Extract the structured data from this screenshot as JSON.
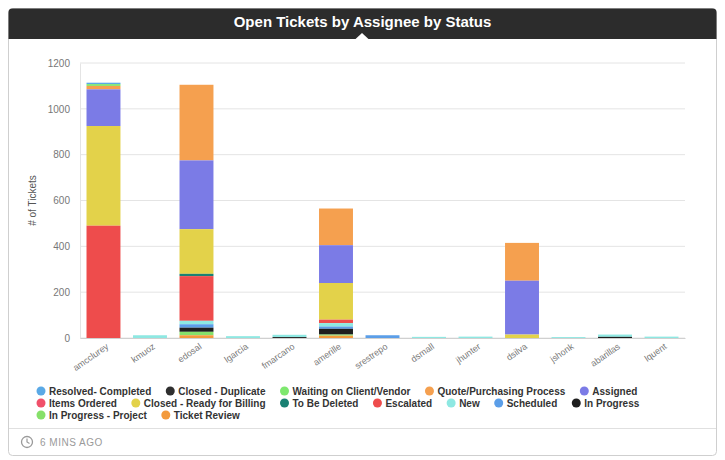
{
  "chart_data": {
    "type": "bar",
    "title": "Open Tickets by Assignee by Status",
    "y_label": "# of Tickets",
    "footer": "6 MINS AGO",
    "stacked": true,
    "grid": true,
    "legend": "bottom",
    "categories": [
      "amcclurey",
      "kmuoz",
      "edosal",
      "lgarcia",
      "fmarcano",
      "amerille",
      "srestrepo",
      "dsmall",
      "jhunter",
      "dsilva",
      "jshonk",
      "abarillas",
      "lquent"
    ],
    "ylim": [
      0,
      1200
    ],
    "yticks": [
      0,
      200,
      400,
      600,
      800,
      1000,
      1200
    ],
    "series": [
      {
        "name": "Resolved- Completed",
        "color": "#5aa9e6",
        "values": [
          6,
          0,
          0,
          0,
          0,
          0,
          0,
          0,
          0,
          0,
          0,
          0,
          0
        ]
      },
      {
        "name": "Closed - Duplicate",
        "color": "#2f2f2f",
        "values": [
          0,
          0,
          0,
          0,
          0,
          0,
          0,
          0,
          0,
          0,
          0,
          0,
          0
        ]
      },
      {
        "name": "Waiting on Client/Vendor",
        "color": "#7ee86f",
        "values": [
          8,
          0,
          0,
          0,
          0,
          0,
          0,
          0,
          0,
          0,
          0,
          0,
          0
        ]
      },
      {
        "name": "Quote/Purchasing Process",
        "color": "#f5a04f",
        "values": [
          15,
          0,
          330,
          0,
          0,
          160,
          0,
          0,
          0,
          165,
          0,
          0,
          0
        ]
      },
      {
        "name": "Assigned",
        "color": "#7b7be6",
        "values": [
          160,
          0,
          300,
          0,
          0,
          165,
          0,
          0,
          0,
          235,
          0,
          0,
          0
        ]
      },
      {
        "name": "Items Ordered",
        "color": "#f0506a",
        "values": [
          0,
          0,
          0,
          0,
          0,
          0,
          0,
          0,
          0,
          0,
          0,
          0,
          0
        ]
      },
      {
        "name": "Closed - Ready for Billing",
        "color": "#e3d24a",
        "values": [
          435,
          0,
          195,
          0,
          0,
          160,
          0,
          0,
          0,
          15,
          0,
          0,
          0
        ]
      },
      {
        "name": "To Be Deleted",
        "color": "#1a8173",
        "values": [
          0,
          0,
          10,
          0,
          0,
          0,
          0,
          0,
          0,
          0,
          0,
          0,
          0
        ]
      },
      {
        "name": "Escalated",
        "color": "#ee4c4c",
        "values": [
          490,
          0,
          195,
          0,
          0,
          15,
          0,
          0,
          0,
          0,
          0,
          0,
          0
        ]
      },
      {
        "name": "New",
        "color": "#8ee8e2",
        "values": [
          0,
          12,
          15,
          8,
          10,
          15,
          0,
          5,
          6,
          0,
          4,
          10,
          6
        ]
      },
      {
        "name": "Scheduled",
        "color": "#5b9ee8",
        "values": [
          0,
          0,
          15,
          0,
          0,
          10,
          12,
          0,
          0,
          0,
          0,
          0,
          0
        ]
      },
      {
        "name": "In Progress",
        "color": "#1e1e1e",
        "values": [
          0,
          0,
          18,
          0,
          4,
          25,
          0,
          0,
          0,
          0,
          0,
          5,
          0
        ]
      },
      {
        "name": "In Progress - Project",
        "color": "#86e06a",
        "values": [
          0,
          0,
          15,
          0,
          0,
          5,
          0,
          0,
          0,
          0,
          0,
          0,
          0
        ]
      },
      {
        "name": "Ticket Review",
        "color": "#f39a3c",
        "values": [
          0,
          0,
          12,
          0,
          0,
          10,
          0,
          0,
          0,
          0,
          0,
          0,
          0
        ]
      }
    ]
  }
}
